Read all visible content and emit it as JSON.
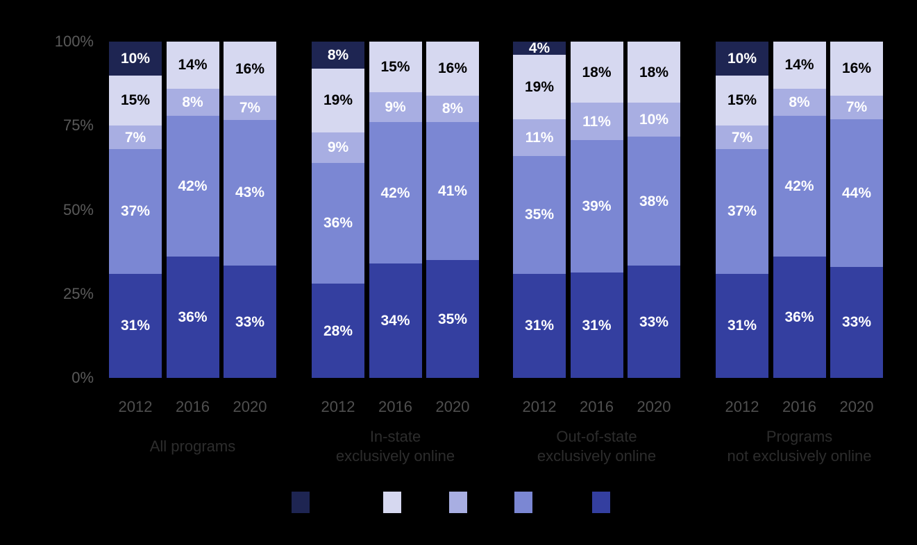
{
  "background_color": "#000000",
  "text_colors": {
    "axis_tick": "#5A5A5A",
    "year_label": "#4F4F4F",
    "group_label": "#2D2D2D",
    "segment_label_light": "#FFFFFF",
    "segment_label_dark": "#000000"
  },
  "y_axis": {
    "ticks": [
      {
        "value": 100,
        "label": "100%"
      },
      {
        "value": 75,
        "label": "75%"
      },
      {
        "value": 50,
        "label": "50%"
      },
      {
        "value": 25,
        "label": "25%"
      },
      {
        "value": 0,
        "label": "0%"
      }
    ]
  },
  "legend": {
    "labels_visible": false,
    "swatch_colors": [
      "#1E2552",
      "#D6D8F0",
      "#A8AEE2",
      "#7B87D3",
      "#343FA0"
    ]
  },
  "chart_data": {
    "type": "bar",
    "stacked": true,
    "unit": "%",
    "ylim": [
      0,
      100
    ],
    "grid": false,
    "legend_position": "bottom",
    "series": [
      {
        "id": "series-1-navy",
        "color": "#1E2552",
        "label_color": "#FFFFFF"
      },
      {
        "id": "series-2-lightest-lavender",
        "color": "#D6D8F0",
        "label_color": "#000000"
      },
      {
        "id": "series-3-light-periwinkle",
        "color": "#A8AEE2",
        "label_color": "#FFFFFF"
      },
      {
        "id": "series-4-medium-periwinkle",
        "color": "#7B87D3",
        "label_color": "#FFFFFF"
      },
      {
        "id": "series-5-dark-blue",
        "color": "#343FA0",
        "label_color": "#FFFFFF"
      }
    ],
    "values_order": "top_to_bottom",
    "groups": [
      {
        "label_lines": [
          "All programs"
        ],
        "bars": [
          {
            "year": "2012",
            "values": [
              10,
              15,
              7,
              37,
              31
            ]
          },
          {
            "year": "2016",
            "values": [
              null,
              14,
              8,
              42,
              36
            ]
          },
          {
            "year": "2020",
            "values": [
              null,
              16,
              7,
              43,
              33
            ]
          }
        ]
      },
      {
        "label_lines": [
          "In-state",
          "exclusively online"
        ],
        "bars": [
          {
            "year": "2012",
            "values": [
              8,
              19,
              9,
              36,
              28
            ]
          },
          {
            "year": "2016",
            "values": [
              null,
              15,
              9,
              42,
              34
            ]
          },
          {
            "year": "2020",
            "values": [
              null,
              16,
              8,
              41,
              35
            ]
          }
        ]
      },
      {
        "label_lines": [
          "Out-of-state",
          "exclusively online"
        ],
        "bars": [
          {
            "year": "2012",
            "values": [
              4,
              19,
              11,
              35,
              31
            ]
          },
          {
            "year": "2016",
            "values": [
              null,
              18,
              11,
              39,
              31
            ]
          },
          {
            "year": "2020",
            "values": [
              null,
              18,
              10,
              38,
              33
            ]
          }
        ]
      },
      {
        "label_lines": [
          "Programs",
          "not exclusively online"
        ],
        "bars": [
          {
            "year": "2012",
            "values": [
              10,
              15,
              7,
              37,
              31
            ]
          },
          {
            "year": "2016",
            "values": [
              null,
              14,
              8,
              42,
              36
            ]
          },
          {
            "year": "2020",
            "values": [
              null,
              16,
              7,
              44,
              33
            ]
          }
        ]
      }
    ]
  }
}
